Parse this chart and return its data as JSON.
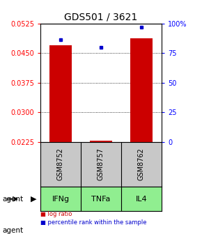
{
  "title": "GDS501 / 3621",
  "categories": [
    "IFNg",
    "TNFa",
    "IL4"
  ],
  "sample_ids": [
    "GSM8752",
    "GSM8757",
    "GSM8762"
  ],
  "bar_values": [
    0.047,
    0.02285,
    0.0488
  ],
  "percentile_values": [
    86,
    80,
    97
  ],
  "ylim_left": [
    0.0225,
    0.0525
  ],
  "ylim_right": [
    0,
    100
  ],
  "yticks_left": [
    0.0225,
    0.03,
    0.0375,
    0.045,
    0.0525
  ],
  "yticks_right": [
    0,
    25,
    50,
    75,
    100
  ],
  "bar_color": "#cc0000",
  "dot_color": "#0000cc",
  "bar_width": 0.55,
  "cell_bg_color": "#c8c8c8",
  "agent_bg_color": "#90ee90",
  "agent_label": "agent",
  "legend_bar_label": "log ratio",
  "legend_dot_label": "percentile rank within the sample",
  "title_fontsize": 10,
  "tick_fontsize": 7,
  "table_fontsize": 7,
  "agent_fontsize": 8
}
